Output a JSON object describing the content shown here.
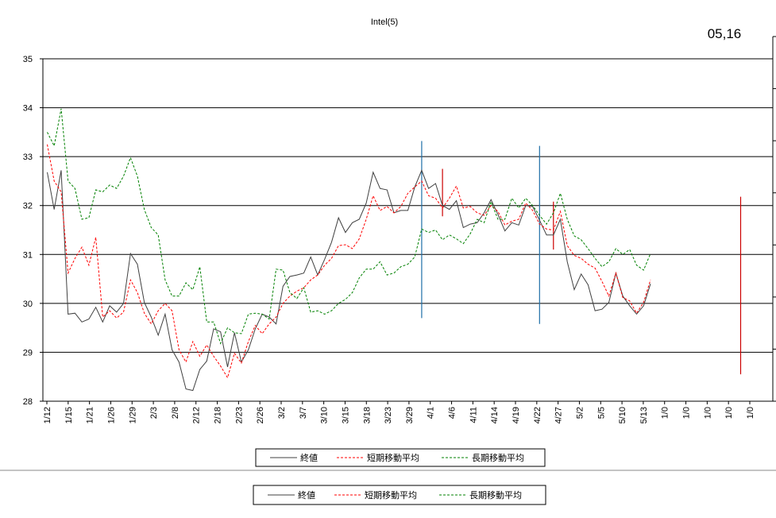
{
  "badge": "05,16",
  "chart_data": {
    "type": "line",
    "title": "Intel(5)",
    "xlabel": "",
    "ylabel": "",
    "ylim": [
      28,
      35
    ],
    "yticks": [
      28,
      29,
      30,
      31,
      32,
      33,
      34,
      35
    ],
    "grid": "horizontal",
    "legend_position": "bottom",
    "xtick_labels": [
      "1/12",
      "1/15",
      "1/21",
      "1/26",
      "1/29",
      "2/3",
      "2/8",
      "2/12",
      "2/18",
      "2/23",
      "2/26",
      "3/2",
      "3/7",
      "3/10",
      "3/15",
      "3/18",
      "3/23",
      "3/29",
      "4/1",
      "4/6",
      "4/11",
      "4/14",
      "4/19",
      "4/22",
      "4/27",
      "5/2",
      "5/5",
      "5/10",
      "5/13",
      "1/0",
      "1/0",
      "1/0",
      "1/0",
      "1/0"
    ],
    "series": [
      {
        "name": "終値",
        "color": "#404040",
        "style": "solid",
        "values": [
          32.68,
          31.92,
          32.72,
          29.78,
          29.8,
          29.62,
          29.68,
          29.92,
          29.62,
          29.95,
          29.82,
          30.0,
          31.02,
          30.8,
          30.02,
          29.72,
          29.35,
          29.78,
          29.05,
          28.8,
          28.25,
          28.22,
          28.65,
          28.82,
          29.48,
          29.42,
          28.7,
          29.4,
          28.8,
          29.05,
          29.48,
          29.78,
          29.72,
          29.58,
          30.35,
          30.55,
          30.58,
          30.62,
          30.95,
          30.58,
          30.9,
          31.25,
          31.75,
          31.45,
          31.65,
          31.72,
          32.05,
          32.68,
          32.35,
          32.32,
          31.85,
          31.9,
          31.9,
          32.38,
          32.72,
          32.35,
          32.45,
          32.0,
          31.92,
          32.1,
          31.55,
          31.62,
          31.65,
          31.85,
          32.12,
          31.82,
          31.48,
          31.65,
          31.6,
          32.0,
          31.98,
          31.7,
          31.4,
          31.4,
          31.72,
          30.85,
          30.28,
          30.6,
          30.38,
          29.85,
          29.88,
          30.02,
          30.62,
          30.15,
          29.95,
          29.78,
          29.95,
          30.4
        ]
      },
      {
        "name": "短期移動平均",
        "color": "#ff0000",
        "style": "dashed",
        "values": [
          33.25,
          32.5,
          32.28,
          30.62,
          30.92,
          31.15,
          30.78,
          31.35,
          29.72,
          29.85,
          29.7,
          29.82,
          30.48,
          30.22,
          29.8,
          29.58,
          29.85,
          30.0,
          29.85,
          29.05,
          28.8,
          29.22,
          28.92,
          29.15,
          28.92,
          28.72,
          28.48,
          28.98,
          28.78,
          29.22,
          29.55,
          29.38,
          29.58,
          29.72,
          30.0,
          30.15,
          30.25,
          30.32,
          30.48,
          30.58,
          30.78,
          30.92,
          31.18,
          31.2,
          31.12,
          31.32,
          31.72,
          32.2,
          31.9,
          31.98,
          31.85,
          31.98,
          32.25,
          32.38,
          32.5,
          32.2,
          32.15,
          31.95,
          32.15,
          32.4,
          31.95,
          31.98,
          31.85,
          31.8,
          32.0,
          31.88,
          31.6,
          31.68,
          31.72,
          32.05,
          31.9,
          31.62,
          31.52,
          31.5,
          31.88,
          31.18,
          30.98,
          30.92,
          30.8,
          30.72,
          30.45,
          30.15,
          30.62,
          30.12,
          30.05,
          29.8,
          30.02,
          30.48
        ]
      },
      {
        "name": "長期移動平均",
        "color": "#008000",
        "style": "dashed",
        "values": [
          33.5,
          33.22,
          33.98,
          32.5,
          32.35,
          31.72,
          31.75,
          32.32,
          32.28,
          32.42,
          32.35,
          32.6,
          32.98,
          32.6,
          31.92,
          31.55,
          31.4,
          30.48,
          30.15,
          30.15,
          30.42,
          30.28,
          30.75,
          29.62,
          29.62,
          29.18,
          29.5,
          29.4,
          29.38,
          29.78,
          29.8,
          29.78,
          29.68,
          30.7,
          30.68,
          30.22,
          30.1,
          30.32,
          29.82,
          29.85,
          29.78,
          29.85,
          30.0,
          30.08,
          30.22,
          30.52,
          30.7,
          30.7,
          30.85,
          30.58,
          30.62,
          30.75,
          30.8,
          30.95,
          31.52,
          31.45,
          31.5,
          31.3,
          31.4,
          31.32,
          31.22,
          31.42,
          31.72,
          31.65,
          32.08,
          31.72,
          31.72,
          32.15,
          31.95,
          32.15,
          32.0,
          31.8,
          31.62,
          31.85,
          32.25,
          31.72,
          31.38,
          31.3,
          31.12,
          30.92,
          30.75,
          30.85,
          31.12,
          31.0,
          31.1,
          30.78,
          30.68,
          31.02
        ]
      }
    ],
    "annotations": [
      {
        "type": "vline",
        "index": 54,
        "from": 29.7,
        "to": 33.32,
        "color": "#1f6fa8"
      },
      {
        "type": "vline",
        "index": 57,
        "from": 31.78,
        "to": 32.75,
        "color": "#cc0000"
      },
      {
        "type": "vline",
        "index": 71,
        "from": 29.58,
        "to": 33.22,
        "color": "#1f6fa8"
      },
      {
        "type": "vline",
        "index": 73,
        "from": 31.1,
        "to": 32.08,
        "color": "#cc0000"
      },
      {
        "type": "vline",
        "index": 100,
        "from": 28.55,
        "to": 32.18,
        "color": "#cc0000"
      }
    ]
  }
}
